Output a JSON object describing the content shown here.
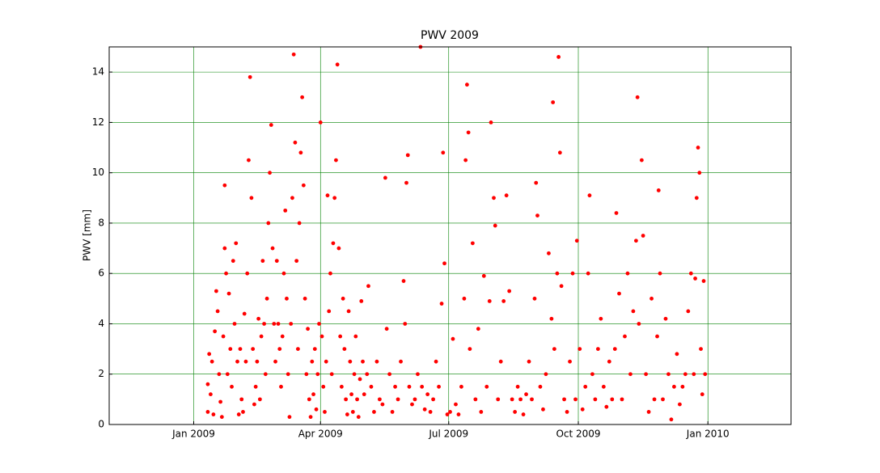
{
  "chart_data": {
    "type": "scatter",
    "title": "PWV 2009",
    "y_label": "PWV [mm]",
    "color": "#ff0000",
    "grid": true,
    "grid_color": "#008000",
    "xlim": [
      -60,
      424
    ],
    "xticks": [
      {
        "value": 0,
        "label": "Jan 2009"
      },
      {
        "value": 90,
        "label": "Apr 2009"
      },
      {
        "value": 181,
        "label": "Jul 2009"
      },
      {
        "value": 273,
        "label": "Oct 2009"
      },
      {
        "value": 365,
        "label": "Jan 2010"
      }
    ],
    "ylim": [
      0,
      15
    ],
    "yticks": [
      0,
      2,
      4,
      6,
      8,
      10,
      12,
      14
    ],
    "x": [
      10,
      10,
      11,
      12,
      13,
      14,
      15,
      16,
      17,
      18,
      19,
      20,
      21,
      22,
      22,
      23,
      24,
      25,
      26,
      27,
      28,
      29,
      30,
      31,
      32,
      33,
      34,
      35,
      36,
      37,
      38,
      39,
      40,
      41,
      42,
      43,
      44,
      45,
      46,
      47,
      48,
      49,
      50,
      51,
      52,
      53,
      54,
      55,
      56,
      57,
      58,
      59,
      60,
      61,
      62,
      63,
      64,
      65,
      66,
      67,
      68,
      69,
      70,
      71,
      72,
      73,
      74,
      75,
      76,
      77,
      78,
      79,
      80,
      81,
      82,
      83,
      84,
      85,
      86,
      87,
      88,
      89,
      90,
      91,
      92,
      93,
      94,
      95,
      96,
      97,
      98,
      99,
      100,
      101,
      102,
      103,
      104,
      105,
      106,
      107,
      108,
      109,
      110,
      111,
      112,
      113,
      114,
      115,
      116,
      117,
      118,
      119,
      120,
      121,
      123,
      124,
      126,
      128,
      130,
      132,
      134,
      136,
      137,
      139,
      141,
      143,
      145,
      147,
      149,
      150,
      151,
      152,
      153,
      155,
      157,
      159,
      161,
      162,
      164,
      166,
      168,
      170,
      172,
      174,
      176,
      177,
      178,
      180,
      182,
      184,
      186,
      188,
      190,
      192,
      193,
      194,
      195,
      196,
      198,
      200,
      202,
      204,
      206,
      208,
      210,
      211,
      213,
      214,
      216,
      218,
      220,
      222,
      224,
      226,
      228,
      230,
      232,
      234,
      236,
      238,
      240,
      242,
      243,
      244,
      246,
      248,
      250,
      252,
      254,
      255,
      256,
      258,
      259,
      260,
      261,
      263,
      265,
      267,
      269,
      271,
      272,
      274,
      276,
      278,
      280,
      281,
      283,
      285,
      287,
      289,
      291,
      293,
      295,
      297,
      299,
      300,
      302,
      304,
      306,
      308,
      310,
      312,
      314,
      315,
      316,
      318,
      319,
      321,
      323,
      325,
      327,
      329,
      330,
      331,
      333,
      335,
      337,
      339,
      341,
      343,
      345,
      347,
      349,
      351,
      353,
      355,
      356,
      357,
      358,
      359,
      360,
      361,
      362,
      363
    ],
    "y": [
      0.5,
      1.6,
      2.8,
      1.2,
      2.5,
      0.4,
      3.7,
      5.3,
      4.5,
      2.0,
      0.9,
      0.3,
      3.5,
      9.5,
      7.0,
      6.0,
      2.0,
      5.2,
      3.0,
      1.5,
      6.5,
      4.0,
      7.2,
      2.5,
      0.4,
      3.0,
      1.0,
      0.5,
      4.4,
      2.5,
      6.0,
      10.5,
      13.8,
      9.0,
      3.0,
      0.8,
      1.5,
      2.5,
      4.2,
      1.0,
      3.5,
      6.5,
      4.0,
      2.0,
      5.0,
      8.0,
      10.0,
      11.9,
      7.0,
      4.0,
      2.5,
      6.5,
      4.0,
      3.0,
      1.5,
      3.5,
      6.0,
      8.5,
      5.0,
      2.0,
      0.3,
      4.0,
      9.0,
      14.7,
      11.2,
      6.5,
      3.0,
      8.0,
      10.8,
      13.0,
      9.5,
      5.0,
      2.0,
      3.8,
      1.0,
      0.3,
      2.5,
      1.2,
      3.0,
      0.6,
      2.0,
      4.0,
      12.0,
      3.5,
      1.5,
      0.5,
      2.5,
      9.1,
      4.5,
      6.0,
      2.0,
      7.2,
      9.0,
      10.5,
      14.3,
      7.0,
      3.5,
      1.5,
      5.0,
      3.0,
      1.0,
      0.4,
      4.5,
      2.5,
      1.2,
      0.5,
      2.0,
      3.5,
      1.0,
      0.3,
      1.8,
      4.9,
      2.5,
      1.2,
      2.0,
      5.5,
      1.5,
      0.5,
      2.5,
      1.0,
      0.8,
      9.8,
      3.8,
      2.0,
      0.5,
      1.5,
      1.0,
      2.5,
      5.7,
      4.0,
      9.6,
      10.7,
      1.5,
      0.8,
      1.0,
      2.0,
      15.0,
      1.5,
      0.6,
      1.2,
      0.5,
      1.0,
      2.5,
      1.5,
      4.8,
      10.8,
      6.4,
      0.4,
      0.5,
      3.4,
      0.8,
      0.4,
      1.5,
      5.0,
      10.5,
      13.5,
      11.6,
      3.0,
      7.2,
      1.0,
      3.8,
      0.5,
      5.9,
      1.5,
      4.9,
      12.0,
      9.0,
      7.9,
      1.0,
      2.5,
      4.9,
      9.1,
      5.3,
      1.0,
      0.5,
      1.5,
      1.0,
      0.4,
      1.2,
      2.5,
      1.0,
      5.0,
      9.6,
      8.3,
      1.5,
      0.6,
      2.0,
      6.8,
      4.2,
      12.8,
      3.0,
      6.0,
      14.6,
      10.8,
      5.5,
      1.0,
      0.5,
      2.5,
      6.0,
      1.0,
      7.3,
      3.0,
      0.6,
      1.5,
      6.0,
      9.1,
      2.0,
      1.0,
      3.0,
      4.2,
      1.5,
      0.7,
      2.5,
      1.0,
      3.0,
      8.4,
      5.2,
      1.0,
      3.5,
      6.0,
      2.0,
      4.5,
      7.3,
      13.0,
      4.0,
      10.5,
      7.5,
      2.0,
      0.5,
      5.0,
      1.0,
      3.5,
      9.3,
      6.0,
      1.0,
      4.2,
      2.0,
      0.2,
      1.5,
      2.8,
      0.8,
      1.5,
      2.0,
      4.5,
      6.0,
      2.0,
      5.8,
      9.0,
      11.0,
      10.0,
      3.0,
      1.2,
      5.7,
      2.0
    ]
  }
}
